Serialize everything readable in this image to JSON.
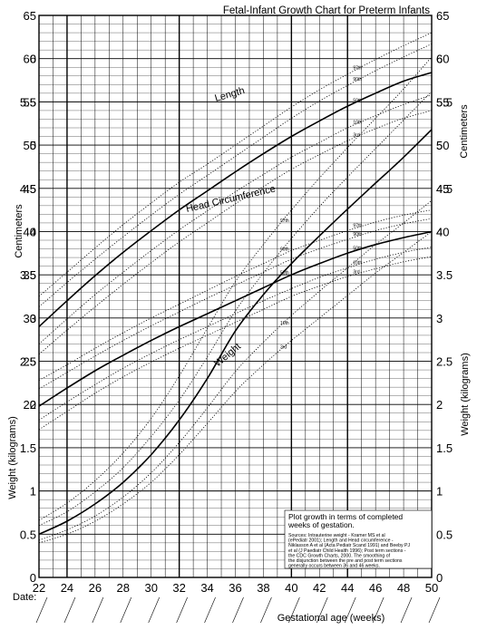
{
  "chart_data": {
    "type": "line",
    "title": "Fetal-Infant Growth Chart for Preterm Infants",
    "xlabel": "Gestational age (weeks)",
    "date_label": "Date:",
    "x_ticks": [
      "22",
      "24",
      "26",
      "28",
      "30",
      "32",
      "34",
      "36",
      "38",
      "40",
      "42",
      "44",
      "46",
      "48",
      "50"
    ],
    "xlim": [
      22,
      50
    ],
    "cm_axis": {
      "label": "Centimeters",
      "range": [
        0,
        65
      ],
      "ticks": [
        "20",
        "25",
        "30",
        "35",
        "40",
        "45",
        "50",
        "55",
        "60",
        "65"
      ]
    },
    "kg_axis": {
      "label": "Weight (kilograms)",
      "range": [
        0,
        6.5
      ],
      "ticks": [
        "0",
        "0.5",
        "1",
        "1.5",
        "2",
        "2.5",
        "3",
        "3.5",
        "4",
        "4.5",
        "5",
        "5.5",
        "6"
      ]
    },
    "grid": true,
    "curve_labels": {
      "length": "Length",
      "head": "Head Circumference",
      "weight": "Weight"
    },
    "percentile_labels": [
      "97th",
      "90th",
      "50th",
      "10th",
      "3rd"
    ],
    "x": [
      22,
      24,
      26,
      28,
      30,
      32,
      34,
      36,
      38,
      40,
      42,
      44,
      46,
      48,
      50
    ],
    "series": [
      {
        "name": "Length 97th",
        "group": "length",
        "style": "dotted",
        "values": [
          32.5,
          35.3,
          38.1,
          40.8,
          43.3,
          45.7,
          47.8,
          50.0,
          52.2,
          54.4,
          56.4,
          58.2,
          59.9,
          61.5,
          63.0
        ]
      },
      {
        "name": "Length 90th",
        "group": "length",
        "style": "dotted",
        "values": [
          31.3,
          34.1,
          36.8,
          39.4,
          41.9,
          44.3,
          46.5,
          48.7,
          50.9,
          53.1,
          55.1,
          56.9,
          58.6,
          60.2,
          61.7
        ]
      },
      {
        "name": "Length 50th",
        "group": "length",
        "style": "solid",
        "values": [
          29.0,
          32.0,
          34.9,
          37.6,
          40.1,
          42.5,
          44.7,
          46.9,
          49.0,
          51.0,
          52.8,
          54.5,
          56.0,
          57.4,
          58.4
        ]
      },
      {
        "name": "Length 10th",
        "group": "length",
        "style": "dotted",
        "values": [
          27.0,
          29.9,
          32.7,
          35.3,
          37.8,
          40.2,
          42.4,
          44.6,
          46.6,
          48.6,
          50.3,
          52.0,
          53.4,
          54.7,
          55.8
        ]
      },
      {
        "name": "Length 3rd",
        "group": "length",
        "style": "dotted",
        "values": [
          25.8,
          28.6,
          31.3,
          33.9,
          36.4,
          38.8,
          41.0,
          43.2,
          45.2,
          47.2,
          48.9,
          50.5,
          51.9,
          53.1,
          54.0
        ]
      },
      {
        "name": "Head 97th",
        "group": "head",
        "style": "dotted",
        "values": [
          22.8,
          24.6,
          26.5,
          28.3,
          30.0,
          31.6,
          33.2,
          34.8,
          36.3,
          37.8,
          39.0,
          40.1,
          41.1,
          41.9,
          42.5
        ]
      },
      {
        "name": "Head 90th",
        "group": "head",
        "style": "dotted",
        "values": [
          21.8,
          23.7,
          25.6,
          27.4,
          29.1,
          30.7,
          32.3,
          33.8,
          35.3,
          36.8,
          38.0,
          39.1,
          40.1,
          40.9,
          41.5
        ]
      },
      {
        "name": "Head 50th",
        "group": "head",
        "style": "solid",
        "values": [
          19.8,
          21.9,
          23.9,
          25.7,
          27.4,
          29.0,
          30.5,
          32.0,
          33.5,
          35.0,
          36.3,
          37.5,
          38.5,
          39.3,
          40.0
        ]
      },
      {
        "name": "Head 10th",
        "group": "head",
        "style": "dotted",
        "values": [
          18.2,
          20.3,
          22.3,
          24.2,
          25.9,
          27.5,
          29.0,
          30.5,
          32.0,
          33.4,
          34.7,
          35.8,
          36.8,
          37.6,
          38.2
        ]
      },
      {
        "name": "Head 3rd",
        "group": "head",
        "style": "dotted",
        "values": [
          17.1,
          19.2,
          21.3,
          23.2,
          24.9,
          26.5,
          28.0,
          29.5,
          31.0,
          32.5,
          33.7,
          34.8,
          35.7,
          36.5,
          37.1
        ]
      },
      {
        "name": "Weight 97th",
        "group": "weight",
        "style": "dotted",
        "values": [
          0.66,
          0.86,
          1.12,
          1.44,
          1.84,
          2.33,
          2.88,
          3.42,
          3.85,
          4.25,
          4.62,
          4.97,
          5.31,
          5.65,
          6.02
        ]
      },
      {
        "name": "Weight 90th",
        "group": "weight",
        "style": "dotted",
        "values": [
          0.6,
          0.76,
          0.99,
          1.27,
          1.63,
          2.05,
          2.55,
          3.08,
          3.52,
          3.92,
          4.29,
          4.63,
          4.96,
          5.29,
          5.62
        ]
      },
      {
        "name": "Weight 50th",
        "group": "weight",
        "style": "solid",
        "values": [
          0.5,
          0.65,
          0.85,
          1.1,
          1.42,
          1.82,
          2.3,
          2.85,
          3.27,
          3.63,
          3.95,
          4.26,
          4.56,
          4.86,
          5.18
        ]
      },
      {
        "name": "Weight 10th",
        "group": "weight",
        "style": "dotted",
        "values": [
          0.43,
          0.55,
          0.71,
          0.93,
          1.21,
          1.56,
          1.96,
          2.38,
          2.72,
          3.03,
          3.31,
          3.58,
          3.85,
          4.1,
          4.36
        ]
      },
      {
        "name": "Weight 3rd",
        "group": "weight",
        "style": "dotted",
        "values": [
          0.4,
          0.5,
          0.65,
          0.85,
          1.1,
          1.42,
          1.78,
          2.15,
          2.46,
          2.74,
          3.0,
          3.26,
          3.52,
          3.76,
          4.0
        ]
      }
    ],
    "note": {
      "heading_lines": [
        "Plot growth in terms of completed",
        "weeks of gestation."
      ],
      "source_lines": [
        "Sources: Intrauterine weight - Kramer MS et al",
        "(ePediatr 2001); Length and Head circumference -",
        "Niklasson A et al (Acta Pediatr Scand 1991) and Beeby PJ",
        "et al (J Paediatr Child Health 1996); Post term sections -",
        "the CDC Growth Charts, 2000.  The smoothing of",
        "the disjunction between the pre and post term sections",
        "generally occurs between 36 and 46 weeks."
      ]
    }
  }
}
